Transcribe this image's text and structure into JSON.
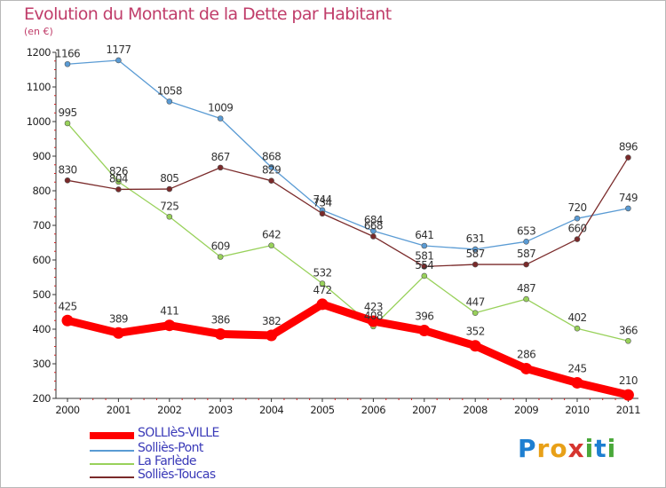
{
  "title": "Evolution du Montant de la Dette par Habitant",
  "subtitle": "(en €)",
  "logo": {
    "text": "Proxiti",
    "letters": [
      "P",
      "r",
      "o",
      "x",
      "i",
      "t",
      "i"
    ],
    "colors": [
      "#1e7fd1",
      "#e8a018",
      "#e8a018",
      "#d6352f",
      "#4aa83a",
      "#1e7fd1",
      "#4aa83a"
    ]
  },
  "chart_data": {
    "type": "line",
    "title": "Evolution du Montant de la Dette par Habitant",
    "ylabel": "(en €)",
    "xlabel": "",
    "ylim": [
      200,
      1200
    ],
    "yticks": [
      200,
      300,
      400,
      500,
      600,
      700,
      800,
      900,
      1000,
      1100,
      1200
    ],
    "categories": [
      "2000",
      "2001",
      "2002",
      "2003",
      "2004",
      "2005",
      "2006",
      "2007",
      "2008",
      "2009",
      "2010",
      "2011"
    ],
    "grid": false,
    "legend": "bottom-left",
    "series": [
      {
        "name": "SOLLIèS-VILLE",
        "color": "#ff0000",
        "bold": true,
        "values": [
          425,
          389,
          411,
          386,
          382,
          472,
          423,
          396,
          352,
          286,
          245,
          210
        ]
      },
      {
        "name": "Solliès-Pont",
        "color": "#5a9bd4",
        "bold": false,
        "values": [
          1166,
          1177,
          1058,
          1009,
          868,
          744,
          684,
          641,
          631,
          653,
          720,
          749
        ]
      },
      {
        "name": "La Farlède",
        "color": "#98d15a",
        "bold": false,
        "values": [
          995,
          826,
          725,
          609,
          642,
          532,
          408,
          554,
          447,
          487,
          402,
          366
        ]
      },
      {
        "name": "Solliès-Toucas",
        "color": "#7a2a2a",
        "bold": false,
        "values": [
          830,
          804,
          805,
          867,
          829,
          734,
          668,
          581,
          587,
          587,
          660,
          896
        ]
      }
    ]
  }
}
